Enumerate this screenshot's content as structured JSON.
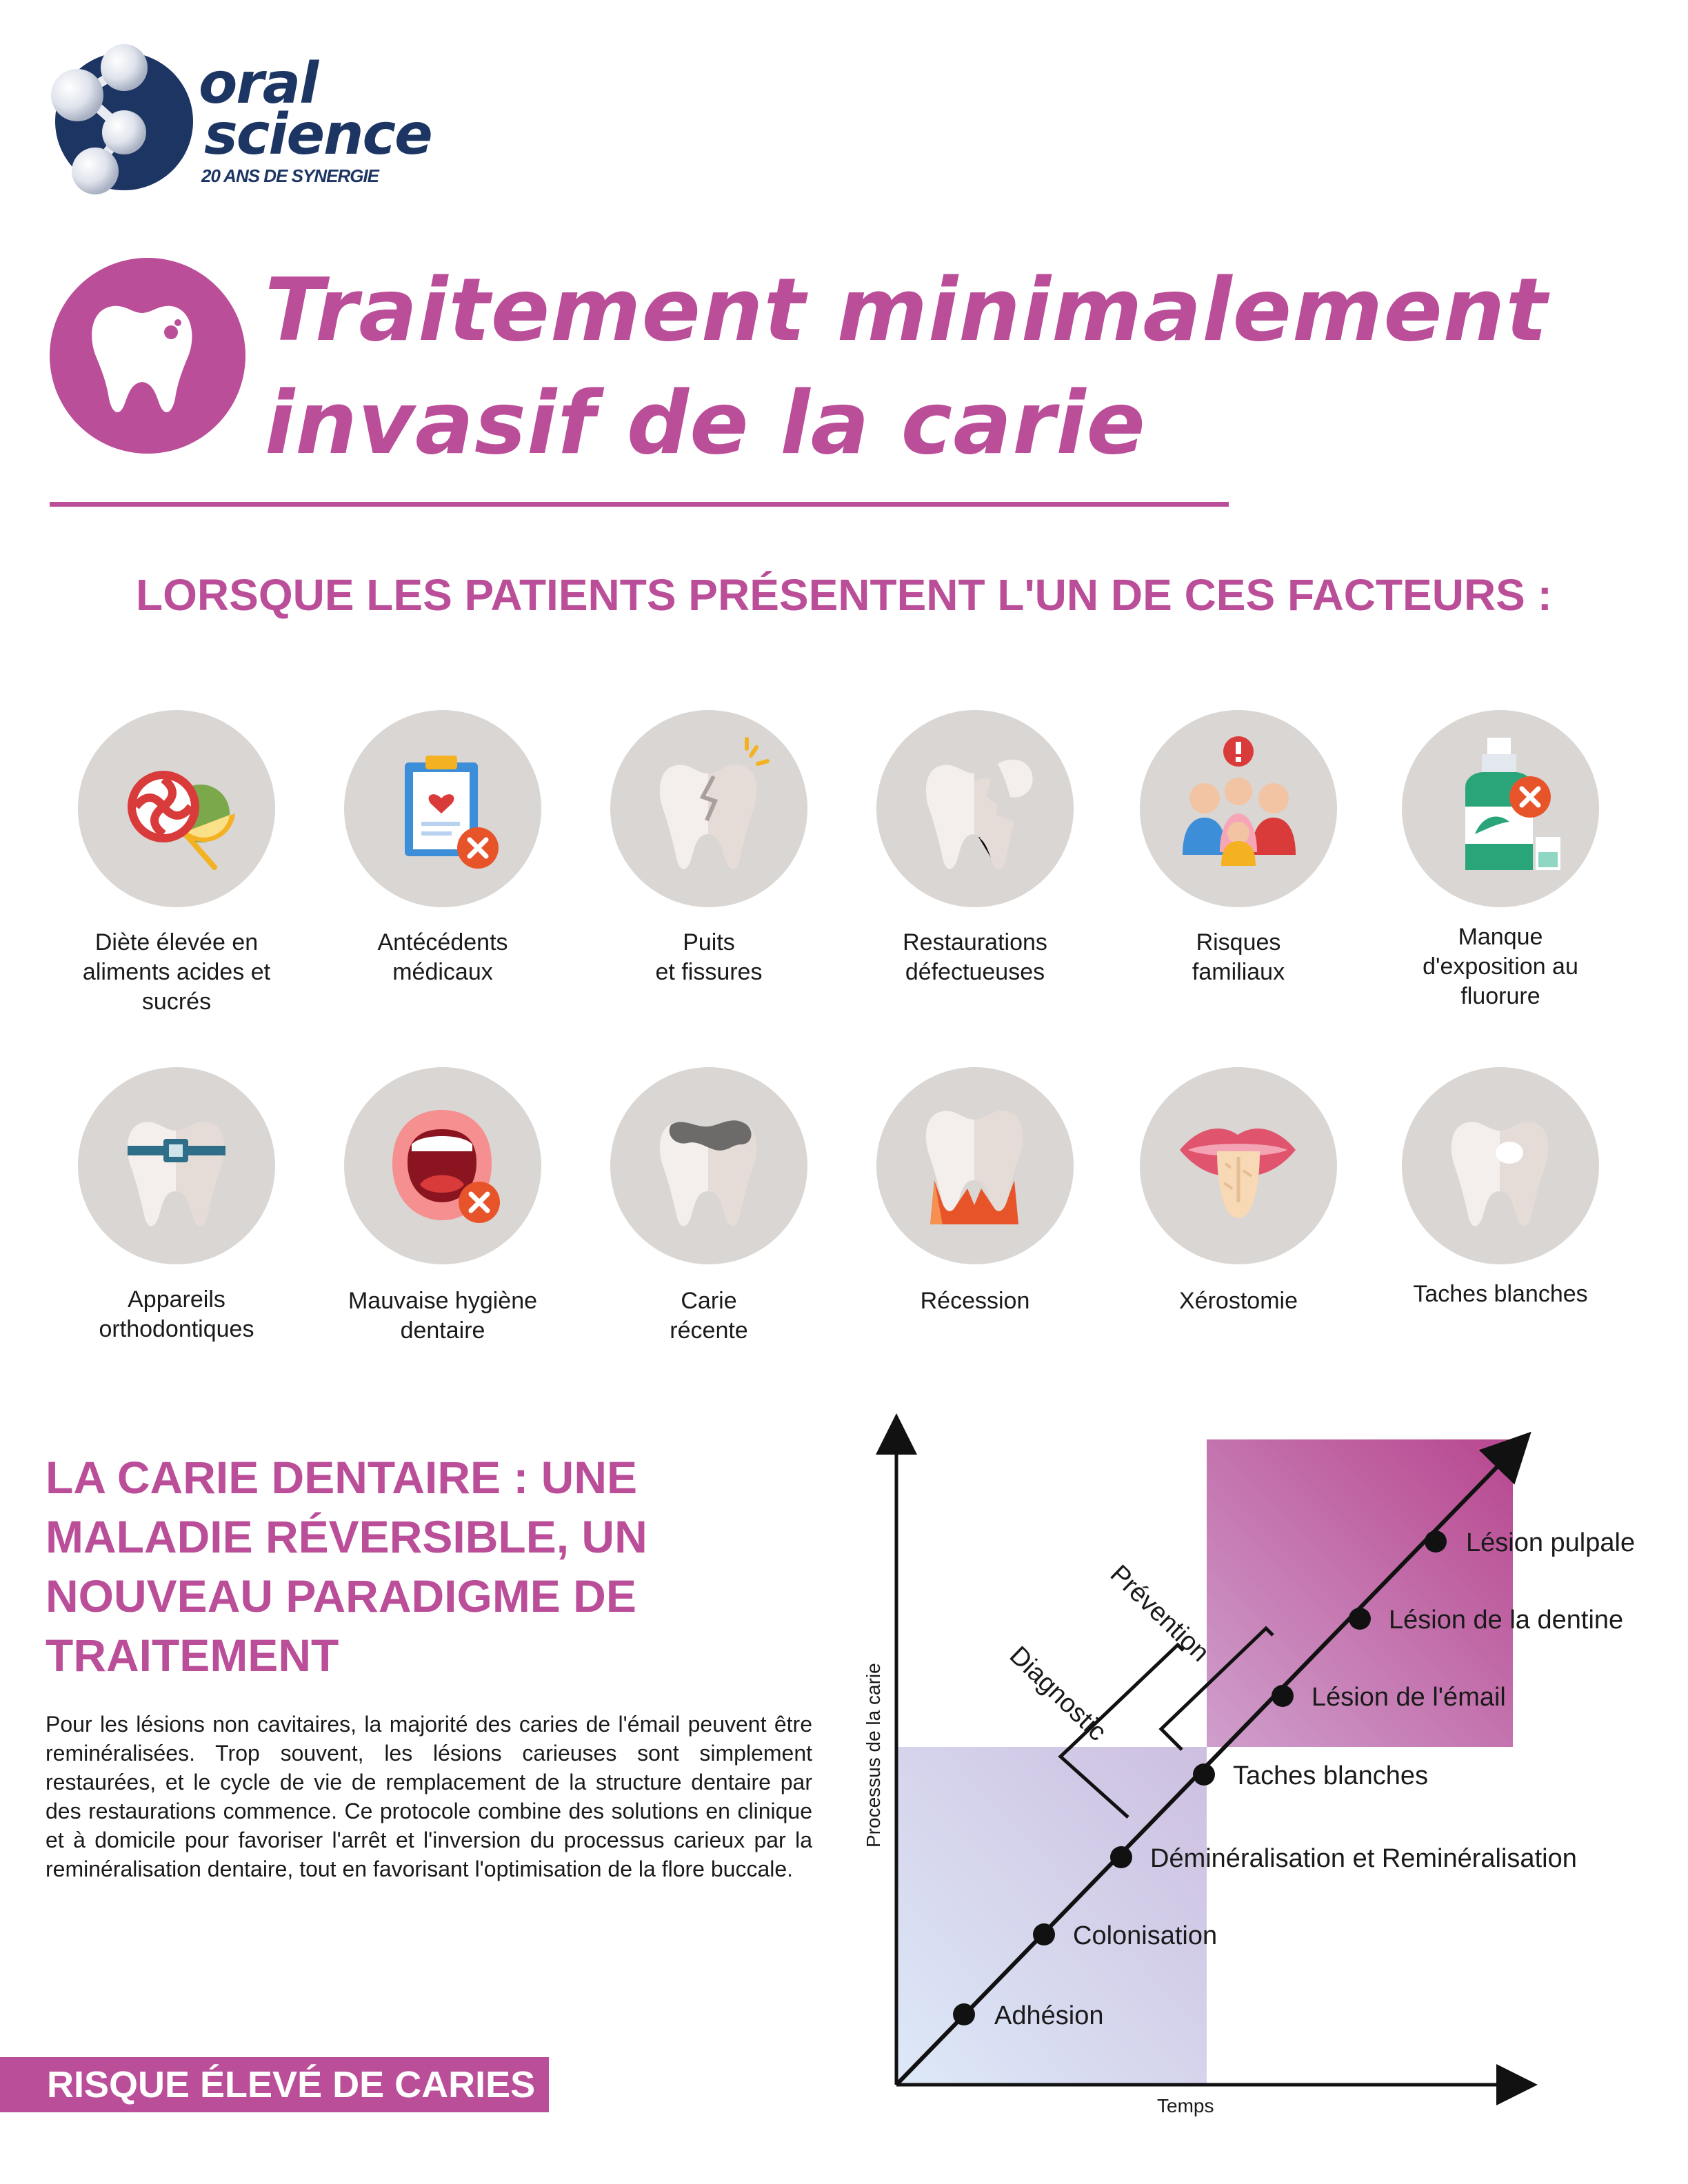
{
  "brand": {
    "line1": "oral",
    "line2": "science",
    "tagline": "20 ANS DE SYNERGIE"
  },
  "title": {
    "line1": "Traitement minimalement",
    "line2": "invasif de la carie"
  },
  "factors_heading": "LORSQUE LES PATIENTS PRÉSENTENT L'UN DE CES FACTEURS :",
  "factors": [
    {
      "label": "Diète élevée en\naliments acides et\nsucrés",
      "icon": "candy-fruit-icon"
    },
    {
      "label": "Antécédents\nmédicaux",
      "icon": "medical-clipboard-icon"
    },
    {
      "label": "Puits\net fissures",
      "icon": "cracked-tooth-icon"
    },
    {
      "label": "Restaurations\ndéfectueuses",
      "icon": "broken-filling-tooth-icon"
    },
    {
      "label": "Risques\nfamiliaux",
      "icon": "family-icon"
    },
    {
      "label": "Manque\nd'exposition au\nfluorure",
      "icon": "mouthwash-bottle-icon"
    },
    {
      "label": "Appareils\northodontiques",
      "icon": "braces-tooth-icon"
    },
    {
      "label": "Mauvaise hygiène\ndentaire",
      "icon": "open-mouth-icon"
    },
    {
      "label": "Carie\nrécente",
      "icon": "decayed-tooth-icon"
    },
    {
      "label": "Récession",
      "icon": "gum-recession-icon"
    },
    {
      "label": "Xérostomie",
      "icon": "dry-mouth-icon"
    },
    {
      "label": "Taches blanches",
      "icon": "white-spot-tooth-icon"
    }
  ],
  "section2": {
    "heading": "LA CARIE DENTAIRE : UNE MALADIE RÉVERSIBLE, UN NOUVEAU PARADIGME DE TRAITEMENT",
    "body": "Pour les lésions non cavitaires, la majorité des caries de l'émail peuvent être reminéralisées. Trop souvent, les lésions carieuses sont simplement restaurées, et le cycle de vie de remplacement de la structure dentaire par des restaurations commence. Ce protocole combine des solutions en clinique et à domicile pour favoriser l'arrêt et l'inversion du processus carieux par la reminéralisation dentaire, tout en favorisant l'optimisation de la flore buccale."
  },
  "risk_label": "RISQUE ÉLEVÉ DE CARIES",
  "chart": {
    "ylabel": "Processus de la carie",
    "xlabel": "Temps",
    "stages": [
      "Adhésion",
      "Colonisation",
      "Déminéralisation et Reminéralisation",
      "Taches blanches",
      "Lésion de l'émail",
      "Lésion de la dentine",
      "Lésion pulpale"
    ],
    "brackets": [
      "Diagnostic",
      "Prévention"
    ],
    "colors": {
      "low_zone": "#d8e3f5",
      "high_zone": "#bb4e99",
      "accent": "#bb4e99",
      "navy": "#1c3563"
    }
  }
}
